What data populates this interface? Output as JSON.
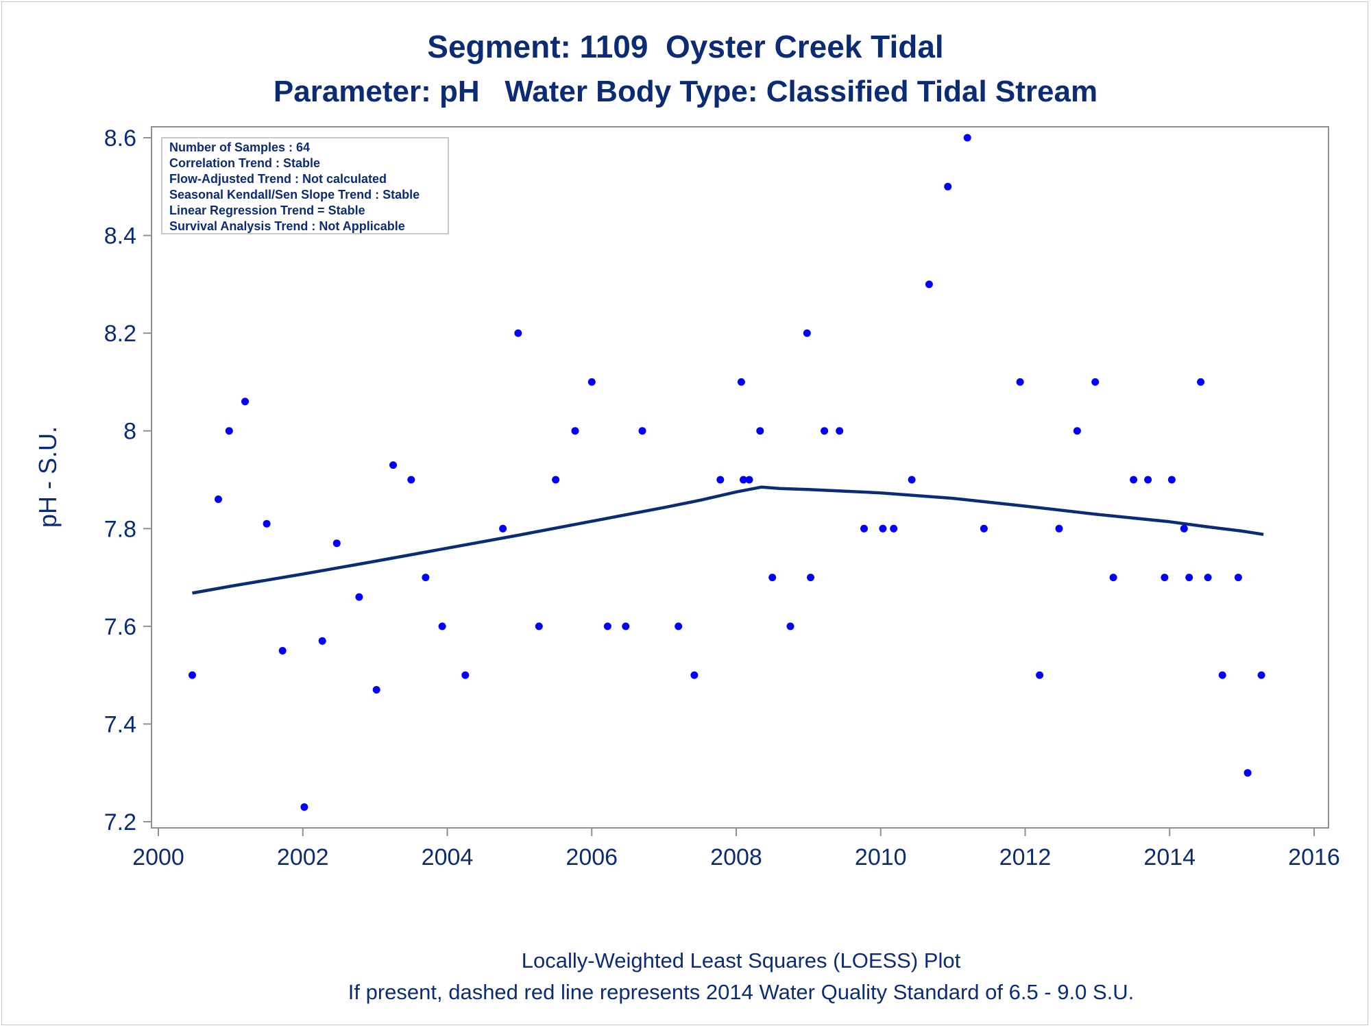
{
  "chart_data": {
    "type": "scatter",
    "title": "Segment: 1109  Oyster Creek Tidal",
    "subtitle": "Parameter: pH   Water Body Type: Classified Tidal Stream",
    "xlabel": "",
    "ylabel": "pH - S.U.",
    "xlim": [
      2000,
      2016
    ],
    "ylim": [
      7.2,
      8.6
    ],
    "x_ticks": [
      "2000",
      "2002",
      "2004",
      "2006",
      "2008",
      "2010",
      "2012",
      "2014",
      "2016"
    ],
    "y_ticks": [
      "7.2",
      "7.4",
      "7.6",
      "7.8",
      "8",
      "8.2",
      "8.4",
      "8.6"
    ],
    "footnotes": [
      "Locally-Weighted Least Squares (LOESS) Plot",
      "If present, dashed red line represents 2014 Water Quality Standard of 6.5 - 9.0 S.U."
    ],
    "stats_box": [
      "Number of Samples : 64",
      "Correlation Trend : Stable",
      "Flow-Adjusted Trend : Not calculated",
      "Seasonal Kendall/Sen Slope Trend : Stable",
      "Linear Regression Trend = Stable",
      "Survival Analysis Trend : Not Applicable"
    ],
    "colors": {
      "points": "#0000ff",
      "loess": "#0b2c74",
      "text": "#0b2c74",
      "axis": "#8a8f98"
    },
    "points": [
      [
        2000.47,
        7.5
      ],
      [
        2000.83,
        7.86
      ],
      [
        2000.98,
        8.0
      ],
      [
        2001.2,
        8.06
      ],
      [
        2001.5,
        7.81
      ],
      [
        2001.72,
        7.55
      ],
      [
        2002.02,
        7.23
      ],
      [
        2002.27,
        7.57
      ],
      [
        2002.47,
        7.77
      ],
      [
        2002.78,
        7.66
      ],
      [
        2003.02,
        7.47
      ],
      [
        2003.25,
        7.93
      ],
      [
        2003.5,
        7.9
      ],
      [
        2003.7,
        7.7
      ],
      [
        2003.93,
        7.6
      ],
      [
        2004.25,
        7.5
      ],
      [
        2004.77,
        7.8
      ],
      [
        2004.98,
        8.2
      ],
      [
        2005.27,
        7.6
      ],
      [
        2005.5,
        7.9
      ],
      [
        2005.77,
        8.0
      ],
      [
        2006.0,
        8.1
      ],
      [
        2006.22,
        7.6
      ],
      [
        2006.47,
        7.6
      ],
      [
        2006.7,
        8.0
      ],
      [
        2007.2,
        7.6
      ],
      [
        2007.42,
        7.5
      ],
      [
        2007.78,
        7.9
      ],
      [
        2008.07,
        8.1
      ],
      [
        2008.1,
        7.9
      ],
      [
        2008.18,
        7.9
      ],
      [
        2008.33,
        8.0
      ],
      [
        2008.5,
        7.7
      ],
      [
        2008.75,
        7.6
      ],
      [
        2008.98,
        8.2
      ],
      [
        2009.03,
        7.7
      ],
      [
        2009.22,
        8.0
      ],
      [
        2009.43,
        8.0
      ],
      [
        2009.77,
        7.8
      ],
      [
        2010.03,
        7.8
      ],
      [
        2010.18,
        7.8
      ],
      [
        2010.43,
        7.9
      ],
      [
        2010.67,
        8.3
      ],
      [
        2010.93,
        8.5
      ],
      [
        2011.2,
        8.6
      ],
      [
        2011.43,
        7.8
      ],
      [
        2011.93,
        8.1
      ],
      [
        2012.2,
        7.5
      ],
      [
        2012.47,
        7.8
      ],
      [
        2012.72,
        8.0
      ],
      [
        2012.97,
        8.1
      ],
      [
        2013.22,
        7.7
      ],
      [
        2013.5,
        7.9
      ],
      [
        2013.7,
        7.9
      ],
      [
        2013.93,
        7.7
      ],
      [
        2014.03,
        7.9
      ],
      [
        2014.2,
        7.8
      ],
      [
        2014.27,
        7.7
      ],
      [
        2014.43,
        8.1
      ],
      [
        2014.53,
        7.7
      ],
      [
        2014.73,
        7.5
      ],
      [
        2014.95,
        7.7
      ],
      [
        2015.08,
        7.3
      ],
      [
        2015.27,
        7.5
      ]
    ],
    "loess": [
      [
        2000.47,
        7.668
      ],
      [
        2001.0,
        7.682
      ],
      [
        2002.0,
        7.707
      ],
      [
        2003.0,
        7.733
      ],
      [
        2004.0,
        7.76
      ],
      [
        2005.0,
        7.787
      ],
      [
        2006.0,
        7.815
      ],
      [
        2007.0,
        7.843
      ],
      [
        2007.5,
        7.858
      ],
      [
        2008.0,
        7.875
      ],
      [
        2008.35,
        7.885
      ],
      [
        2008.6,
        7.882
      ],
      [
        2009.0,
        7.88
      ],
      [
        2010.0,
        7.873
      ],
      [
        2011.0,
        7.862
      ],
      [
        2012.0,
        7.846
      ],
      [
        2013.0,
        7.829
      ],
      [
        2014.0,
        7.814
      ],
      [
        2014.5,
        7.804
      ],
      [
        2015.0,
        7.795
      ],
      [
        2015.3,
        7.788
      ]
    ]
  }
}
